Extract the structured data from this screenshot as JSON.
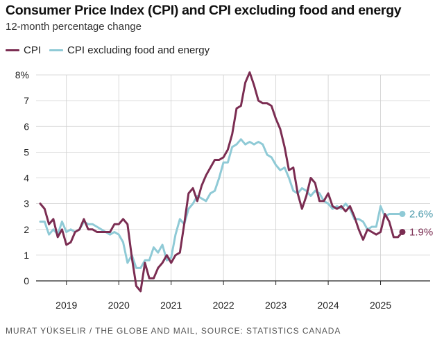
{
  "chart_data": {
    "type": "line",
    "title": "Consumer Price Index (CPI) and CPI excluding food and energy",
    "subtitle": "12-month percentage change",
    "xlabel": "",
    "ylabel": "",
    "ylim": [
      -0.4,
      8.2
    ],
    "y_ticks": [
      0,
      1,
      2,
      3,
      4,
      5,
      6,
      7,
      8
    ],
    "y_tick_labels": [
      "0",
      "1",
      "2",
      "3",
      "4",
      "5",
      "6",
      "7",
      "8%"
    ],
    "x_tick_labels": [
      "2019",
      "2020",
      "2021",
      "2022",
      "2023",
      "2024",
      "2025"
    ],
    "x_start": "2018-07",
    "x_end": "2025-06",
    "grid": true,
    "legend_position": "top-left",
    "series": [
      {
        "name": "CPI",
        "color": "#7b2d52",
        "end_label": "1.9%",
        "values": [
          3.0,
          2.8,
          2.2,
          2.4,
          1.7,
          2.0,
          1.4,
          1.5,
          1.9,
          2.0,
          2.4,
          2.0,
          2.0,
          1.9,
          1.9,
          1.9,
          1.9,
          2.2,
          2.2,
          2.4,
          2.2,
          0.9,
          -0.2,
          -0.4,
          0.7,
          0.1,
          0.1,
          0.5,
          0.7,
          1.0,
          0.7,
          1.0,
          1.1,
          2.2,
          3.4,
          3.6,
          3.1,
          3.7,
          4.1,
          4.4,
          4.7,
          4.7,
          4.8,
          5.1,
          5.7,
          6.7,
          6.8,
          7.7,
          8.1,
          7.6,
          7.0,
          6.9,
          6.9,
          6.8,
          6.3,
          5.9,
          5.2,
          4.3,
          4.4,
          3.4,
          2.8,
          3.3,
          4.0,
          3.8,
          3.1,
          3.1,
          3.4,
          2.9,
          2.8,
          2.9,
          2.7,
          2.9,
          2.5,
          2.0,
          1.6,
          2.0,
          1.9,
          1.8,
          1.9,
          2.6,
          2.3,
          1.7,
          1.7,
          1.9
        ]
      },
      {
        "name": "CPI excluding food and energy",
        "color": "#8fcad6",
        "end_label": "2.6%",
        "values": [
          2.3,
          2.3,
          1.8,
          2.0,
          1.8,
          2.3,
          1.9,
          2.0,
          1.9,
          2.0,
          2.3,
          2.2,
          2.2,
          2.1,
          2.0,
          1.9,
          1.8,
          1.9,
          1.8,
          1.5,
          0.7,
          1.0,
          0.5,
          0.5,
          0.8,
          0.8,
          1.3,
          1.1,
          1.4,
          0.8,
          0.9,
          1.8,
          2.4,
          2.2,
          2.8,
          3.0,
          3.3,
          3.2,
          3.1,
          3.4,
          3.5,
          4.0,
          4.6,
          4.6,
          5.2,
          5.3,
          5.5,
          5.3,
          5.4,
          5.3,
          5.4,
          5.3,
          4.9,
          4.8,
          4.5,
          4.3,
          4.4,
          4.0,
          3.5,
          3.4,
          3.6,
          3.5,
          3.3,
          3.5,
          3.4,
          3.1,
          3.0,
          2.8,
          2.9,
          2.8,
          3.0,
          2.8,
          2.4,
          2.4,
          2.3,
          2.0,
          2.1,
          2.1,
          2.9,
          2.5,
          2.6,
          2.6,
          2.6,
          2.6
        ]
      }
    ]
  },
  "footer": {
    "credit": "MURAT YÜKSELIR / THE GLOBE AND MAIL, SOURCE: STATISTICS CANADA"
  }
}
